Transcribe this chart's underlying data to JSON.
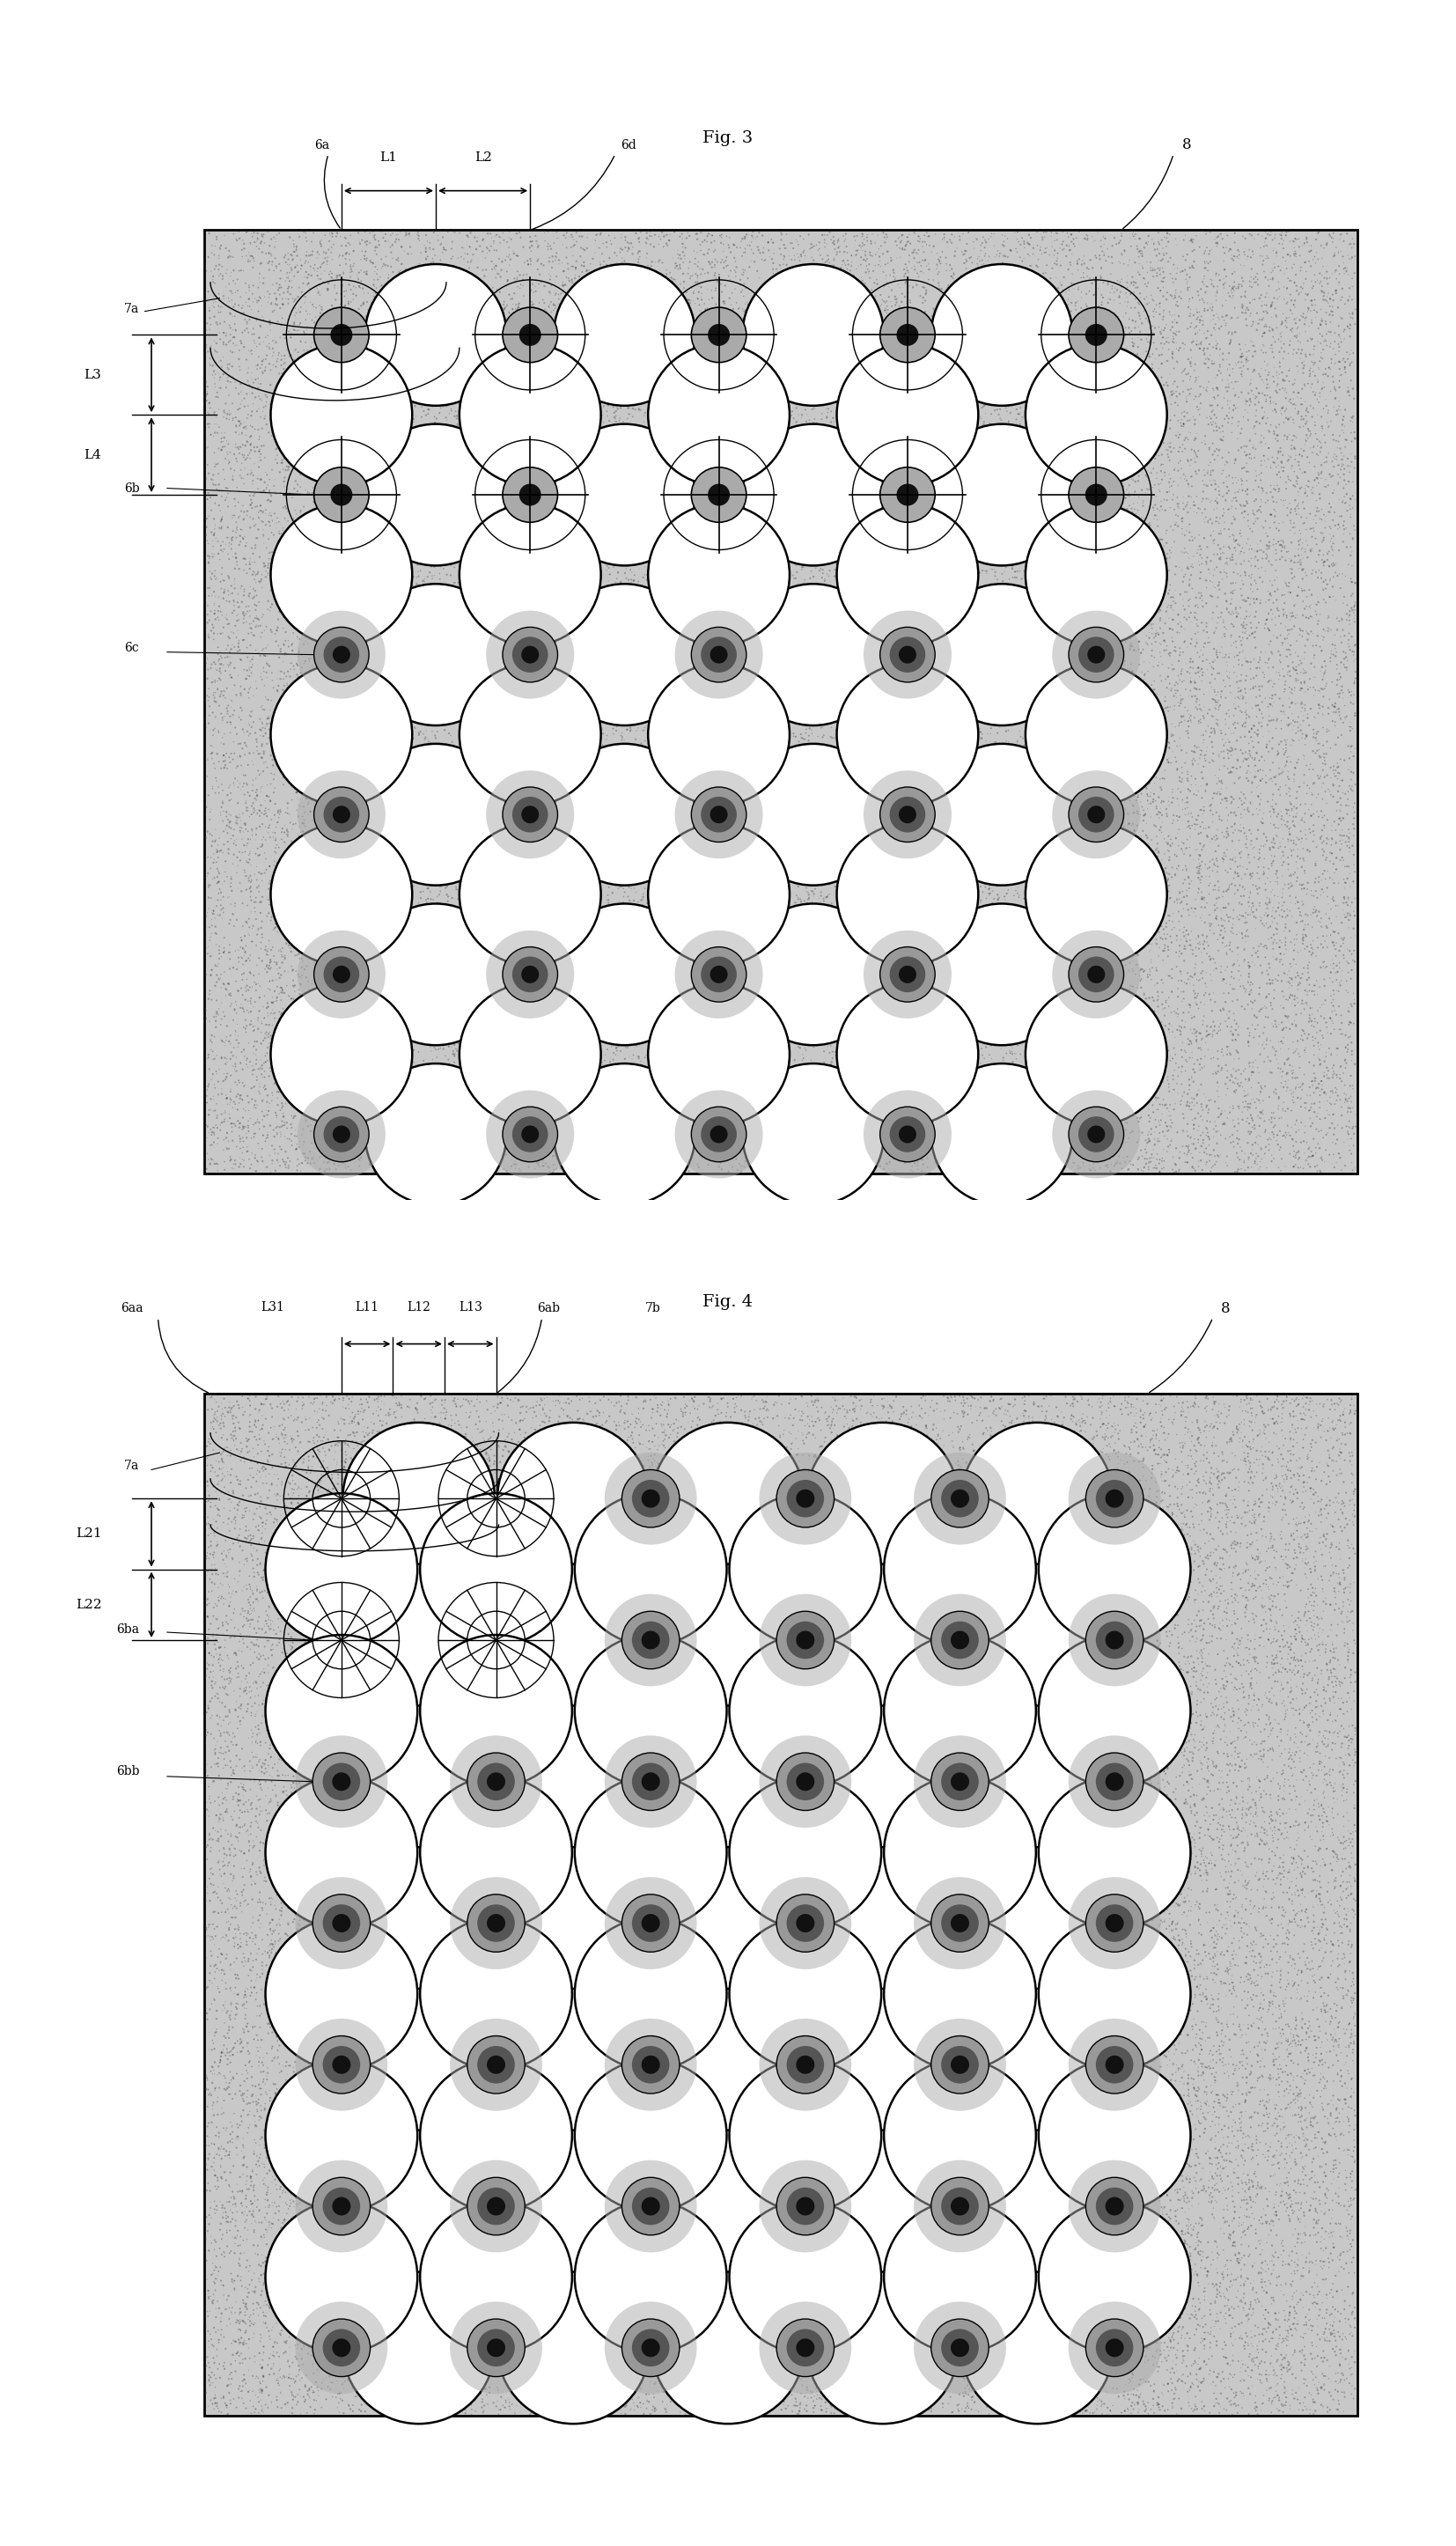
{
  "fig3_title": "Fig. 3",
  "fig4_title": "Fig. 4",
  "bg_light": "#c8c8c8",
  "bg_dark": "#a0a0a0",
  "white": "#ffffff",
  "black": "#000000",
  "needle_outer": "#888888",
  "needle_inner": "#111111"
}
